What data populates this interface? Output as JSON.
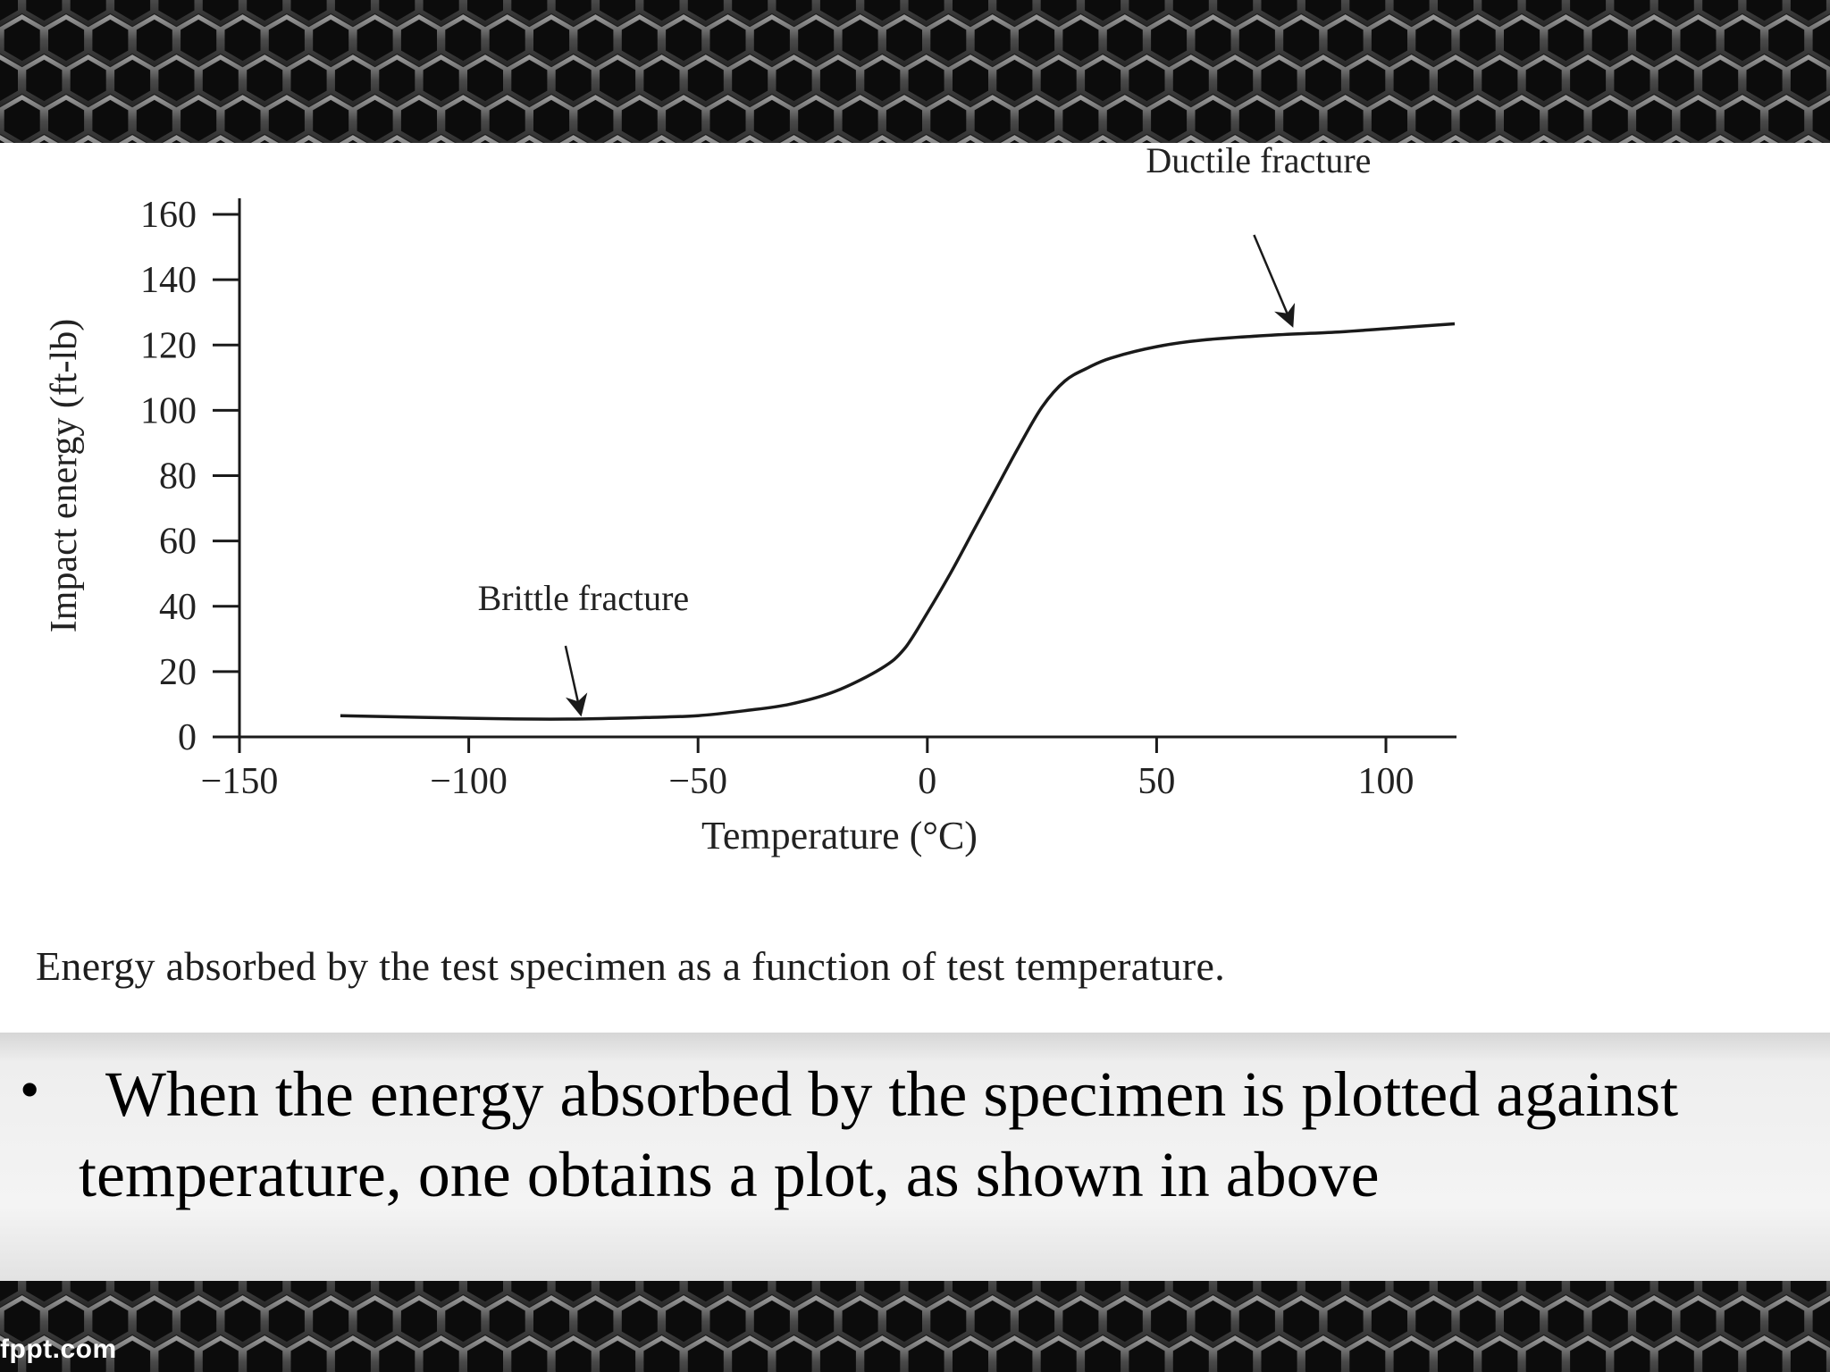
{
  "slide": {
    "caption": "Energy absorbed by the test specimen as a function of test temperature.",
    "bullets": [
      {
        "text": "When the energy absorbed by the specimen is plotted against temperature, one obtains a plot, as shown in above"
      }
    ],
    "watermark": "fppt.com"
  },
  "chart_data": {
    "type": "line",
    "title": "",
    "xlabel": "Temperature (°C)",
    "ylabel": "Impact energy (ft-lb)",
    "xlim": [
      -150,
      115
    ],
    "ylim": [
      0,
      160
    ],
    "x_ticks": [
      -150,
      -100,
      -50,
      0,
      50,
      100
    ],
    "x_tick_labels": [
      "−150",
      "−100",
      "−50",
      "0",
      "50",
      "100"
    ],
    "y_ticks": [
      0,
      20,
      40,
      60,
      80,
      100,
      120,
      140,
      160
    ],
    "y_tick_labels": [
      "0",
      "20",
      "40",
      "60",
      "80",
      "100",
      "120",
      "140",
      "160"
    ],
    "grid": false,
    "series": [
      {
        "x": [
          -128,
          -110,
          -90,
          -75,
          -60,
          -50,
          -40,
          -30,
          -20,
          -10,
          -5,
          0,
          5,
          10,
          15,
          20,
          25,
          30,
          35,
          40,
          50,
          60,
          75,
          90,
          100,
          115
        ],
        "y": [
          6.5,
          6,
          5.5,
          5.5,
          6,
          6.5,
          8,
          10,
          14,
          21,
          27,
          38,
          50,
          63,
          76,
          89,
          101,
          109,
          113,
          116,
          119.5,
          121.5,
          123,
          124,
          125,
          126.5
        ]
      }
    ],
    "annotations": [
      {
        "text": "Ductile fracture",
        "x": 80,
        "y": 125
      },
      {
        "text": "Brittle fracture",
        "x": -75,
        "y": 6
      }
    ],
    "colors": {
      "line": "#1a1a1a",
      "axis": "#1a1a1a",
      "text": "#222222"
    }
  }
}
